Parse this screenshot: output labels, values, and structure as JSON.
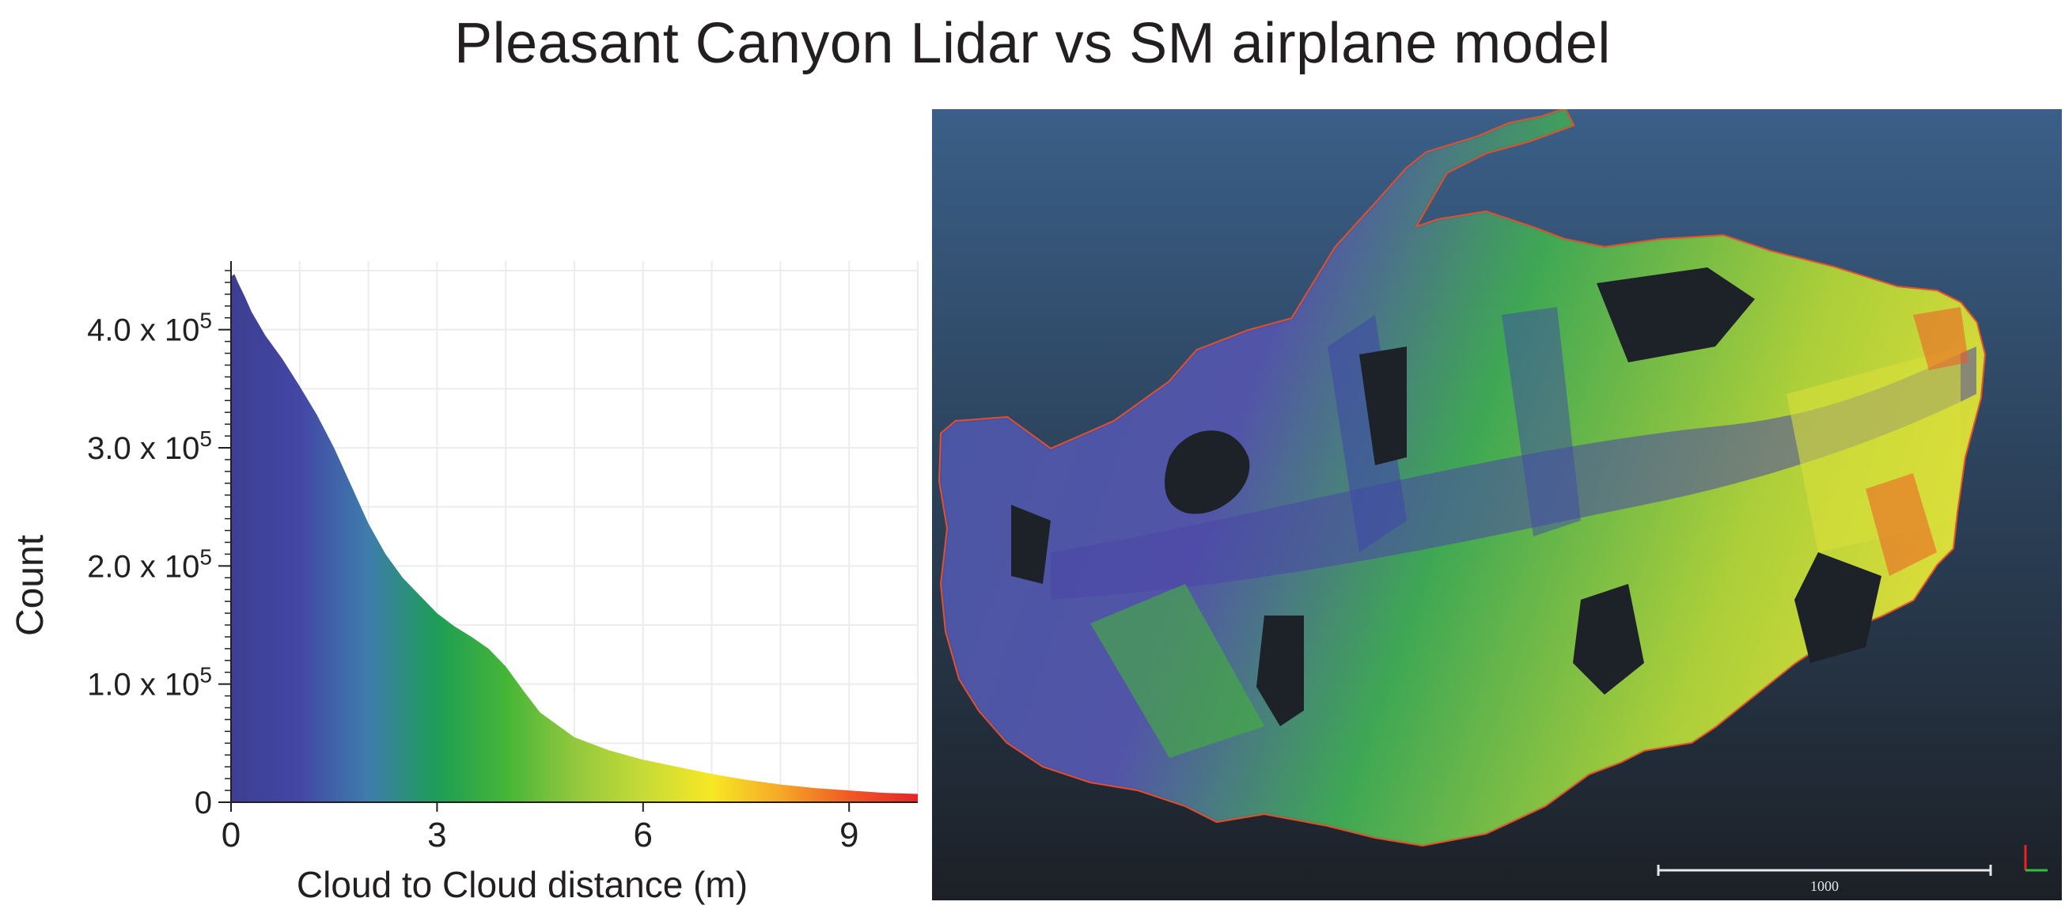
{
  "title": "Pleasant Canyon Lidar vs SM airplane model",
  "chart_data": {
    "type": "area",
    "xlabel": "Cloud to Cloud distance (m)",
    "ylabel": "Count",
    "xlim": [
      0,
      10
    ],
    "ylim": [
      0,
      450000
    ],
    "x_ticks": [
      {
        "value": 0,
        "label": "0"
      },
      {
        "value": 3,
        "label": "3"
      },
      {
        "value": 6,
        "label": "6"
      },
      {
        "value": 9,
        "label": "9"
      }
    ],
    "y_ticks": [
      {
        "value": 0,
        "mantissa": "0",
        "exponent": ""
      },
      {
        "value": 100000,
        "mantissa": "1.0 x 10",
        "exponent": "5"
      },
      {
        "value": 200000,
        "mantissa": "2.0 x 10",
        "exponent": "5"
      },
      {
        "value": 300000,
        "mantissa": "3.0 x 10",
        "exponent": "5"
      },
      {
        "value": 400000,
        "mantissa": "4.0 x 10",
        "exponent": "5"
      }
    ],
    "grid": true,
    "x": [
      0,
      0.05,
      0.1,
      0.2,
      0.3,
      0.5,
      0.75,
      1.0,
      1.25,
      1.5,
      1.75,
      2.0,
      2.25,
      2.5,
      2.75,
      3.0,
      3.25,
      3.5,
      3.75,
      4.0,
      4.25,
      4.5,
      5.0,
      5.5,
      6.0,
      6.5,
      7.0,
      7.5,
      8.0,
      8.5,
      9.0,
      9.5,
      10.0
    ],
    "values": [
      445000,
      447000,
      440000,
      428000,
      415000,
      395000,
      375000,
      352000,
      328000,
      300000,
      268000,
      236000,
      210000,
      190000,
      175000,
      160000,
      149000,
      140000,
      130000,
      115000,
      95000,
      76000,
      55000,
      44000,
      36000,
      30000,
      24000,
      19000,
      15000,
      12000,
      10000,
      8000,
      7000
    ],
    "colormap": [
      "#3c3f91",
      "#4446a5",
      "#3e7dac",
      "#1e9d56",
      "#44b537",
      "#92c83e",
      "#c6db37",
      "#f7e724",
      "#f6a827",
      "#ef5a24",
      "#e52428"
    ]
  },
  "map": {
    "background": [
      "#3a5f88",
      "#1c2026"
    ],
    "scale_label": "1000"
  }
}
